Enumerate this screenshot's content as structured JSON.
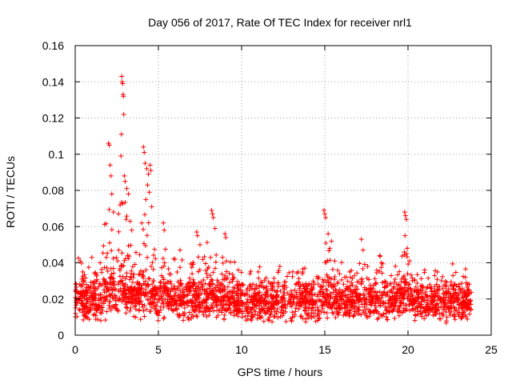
{
  "chart_data": {
    "type": "scatter",
    "title": "Day 056 of 2017, Rate Of TEC Index for receiver nrl1",
    "xlabel": "GPS time / hours",
    "ylabel": "ROTI / TECUs",
    "xlim": [
      0,
      25
    ],
    "ylim": [
      0,
      0.16
    ],
    "x_ticks": [
      0,
      5,
      10,
      15,
      20,
      25
    ],
    "x_tick_labels": [
      "0",
      "5",
      "10",
      "15",
      "20",
      "25"
    ],
    "y_ticks": [
      0,
      0.02,
      0.04,
      0.06,
      0.08,
      0.1,
      0.12,
      0.14,
      0.16
    ],
    "y_tick_labels": [
      "0",
      "0.02",
      "0.04",
      "0.06",
      "0.08",
      "0.1",
      "0.12",
      "0.14",
      "0.16"
    ],
    "grid": true,
    "marker": "+",
    "series": [
      {
        "name": "nrl1",
        "color": "#ff0000",
        "x_range": [
          0,
          23.8
        ],
        "baseline_range": [
          0.006,
          0.03
        ],
        "points": [
          {
            "x": 2.0,
            "y": 0.106
          },
          {
            "x": 2.05,
            "y": 0.105
          },
          {
            "x": 2.1,
            "y": 0.094
          },
          {
            "x": 2.15,
            "y": 0.088
          },
          {
            "x": 2.2,
            "y": 0.078
          },
          {
            "x": 2.3,
            "y": 0.068
          },
          {
            "x": 2.8,
            "y": 0.143
          },
          {
            "x": 2.82,
            "y": 0.14
          },
          {
            "x": 2.85,
            "y": 0.139
          },
          {
            "x": 2.88,
            "y": 0.133
          },
          {
            "x": 2.9,
            "y": 0.132
          },
          {
            "x": 2.92,
            "y": 0.122
          },
          {
            "x": 2.78,
            "y": 0.111
          },
          {
            "x": 2.75,
            "y": 0.099
          },
          {
            "x": 2.95,
            "y": 0.088
          },
          {
            "x": 3.0,
            "y": 0.085
          },
          {
            "x": 3.1,
            "y": 0.081
          },
          {
            "x": 3.2,
            "y": 0.078
          },
          {
            "x": 2.7,
            "y": 0.072
          },
          {
            "x": 2.6,
            "y": 0.067
          },
          {
            "x": 3.3,
            "y": 0.063
          },
          {
            "x": 3.4,
            "y": 0.058
          },
          {
            "x": 4.1,
            "y": 0.104
          },
          {
            "x": 4.15,
            "y": 0.101
          },
          {
            "x": 4.2,
            "y": 0.095
          },
          {
            "x": 4.3,
            "y": 0.092
          },
          {
            "x": 4.4,
            "y": 0.089
          },
          {
            "x": 4.5,
            "y": 0.094
          },
          {
            "x": 4.55,
            "y": 0.091
          },
          {
            "x": 4.35,
            "y": 0.083
          },
          {
            "x": 4.45,
            "y": 0.079
          },
          {
            "x": 4.25,
            "y": 0.075
          },
          {
            "x": 4.6,
            "y": 0.071
          },
          {
            "x": 4.0,
            "y": 0.062
          },
          {
            "x": 5.3,
            "y": 0.062
          },
          {
            "x": 5.35,
            "y": 0.058
          },
          {
            "x": 7.3,
            "y": 0.057
          },
          {
            "x": 7.35,
            "y": 0.055
          },
          {
            "x": 7.5,
            "y": 0.05
          },
          {
            "x": 8.2,
            "y": 0.069
          },
          {
            "x": 8.25,
            "y": 0.067
          },
          {
            "x": 8.3,
            "y": 0.065
          },
          {
            "x": 8.4,
            "y": 0.059
          },
          {
            "x": 9.0,
            "y": 0.056
          },
          {
            "x": 9.05,
            "y": 0.054
          },
          {
            "x": 9.8,
            "y": 0.036
          },
          {
            "x": 11.0,
            "y": 0.035
          },
          {
            "x": 12.3,
            "y": 0.038
          },
          {
            "x": 13.8,
            "y": 0.037
          },
          {
            "x": 14.95,
            "y": 0.069
          },
          {
            "x": 15.0,
            "y": 0.067
          },
          {
            "x": 15.05,
            "y": 0.065
          },
          {
            "x": 15.2,
            "y": 0.056
          },
          {
            "x": 15.4,
            "y": 0.052
          },
          {
            "x": 15.3,
            "y": 0.048
          },
          {
            "x": 15.6,
            "y": 0.041
          },
          {
            "x": 17.2,
            "y": 0.053
          },
          {
            "x": 17.3,
            "y": 0.047
          },
          {
            "x": 18.3,
            "y": 0.044
          },
          {
            "x": 18.4,
            "y": 0.04
          },
          {
            "x": 19.8,
            "y": 0.068
          },
          {
            "x": 19.85,
            "y": 0.066
          },
          {
            "x": 19.9,
            "y": 0.064
          },
          {
            "x": 19.82,
            "y": 0.055
          },
          {
            "x": 19.95,
            "y": 0.048
          },
          {
            "x": 20.1,
            "y": 0.041
          },
          {
            "x": 21.6,
            "y": 0.033
          },
          {
            "x": 22.7,
            "y": 0.033
          },
          {
            "x": 23.5,
            "y": 0.029
          },
          {
            "x": 0.3,
            "y": 0.041
          },
          {
            "x": 1.0,
            "y": 0.043
          },
          {
            "x": 1.5,
            "y": 0.04
          },
          {
            "x": 6.3,
            "y": 0.047
          },
          {
            "x": 6.0,
            "y": 0.042
          },
          {
            "x": 10.5,
            "y": 0.034
          },
          {
            "x": 16.5,
            "y": 0.035
          },
          {
            "x": 21.0,
            "y": 0.036
          }
        ]
      }
    ]
  }
}
